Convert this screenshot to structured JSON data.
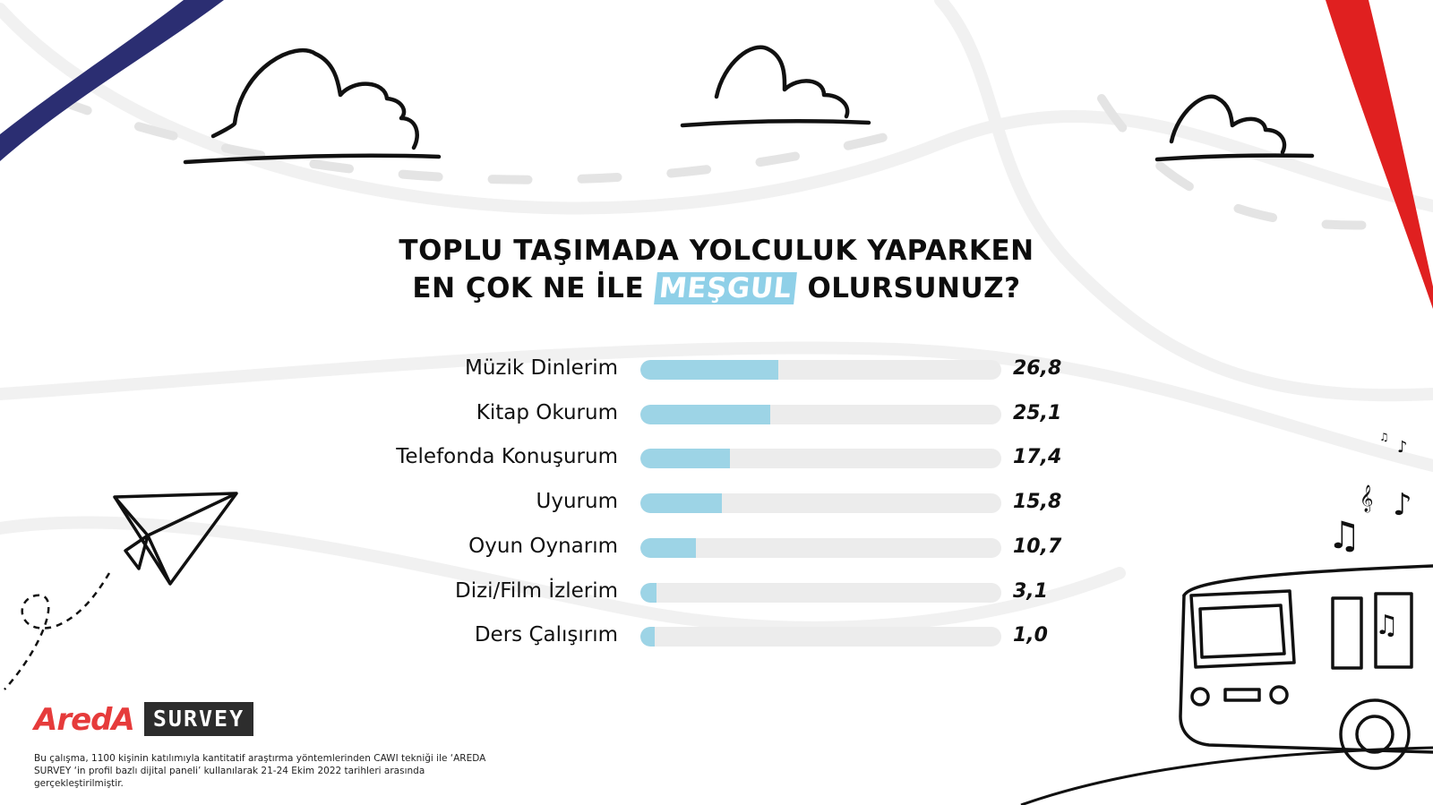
{
  "title": {
    "line1": "TOPLU TAŞIMADA YOLCULUK YAPARKEN",
    "line2_pre": "EN ÇOK NE İLE",
    "line2_highlight": "MEŞGUL",
    "line2_post": "OLURSUNUZ?"
  },
  "colors": {
    "bar_fill": "#9dd4e6",
    "track": "#ececec",
    "highlight": "#8fd0e8",
    "ribbon_blue": "#2b2e72",
    "ribbon_red": "#e02020"
  },
  "chart_data": {
    "type": "bar",
    "orientation": "horizontal",
    "title": "TOPLU TAŞIMADA YOLCULUK YAPARKEN EN ÇOK NE İLE MEŞGUL OLURSUNUZ?",
    "categories": [
      "Müzik Dinlerim",
      "Kitap Okurum",
      "Telefonda Konuşurum",
      "Uyurum",
      "Oyun Oynarım",
      "Dizi/Film İzlerim",
      "Ders Çalışırım"
    ],
    "values": [
      26.8,
      25.1,
      17.4,
      15.8,
      10.7,
      3.1,
      1.0
    ],
    "value_labels": [
      "26,8",
      "25,1",
      "17,4",
      "15,8",
      "10,7",
      "3,1",
      "1,0"
    ],
    "xlim": [
      0,
      70
    ]
  },
  "brand": {
    "name_part1": "AredA",
    "name_part2": "SURVEY"
  },
  "footnote": "Bu çalışma, 1100 kişinin katılımıyla kantitatif araştırma yöntemlerinden CAWI tekniği ile ‘AREDA SURVEY ‘in profil bazlı dijital paneli’ kullanılarak 21-24 Ekim 2022 tarihleri arasında gerçekleştirilmiştir."
}
